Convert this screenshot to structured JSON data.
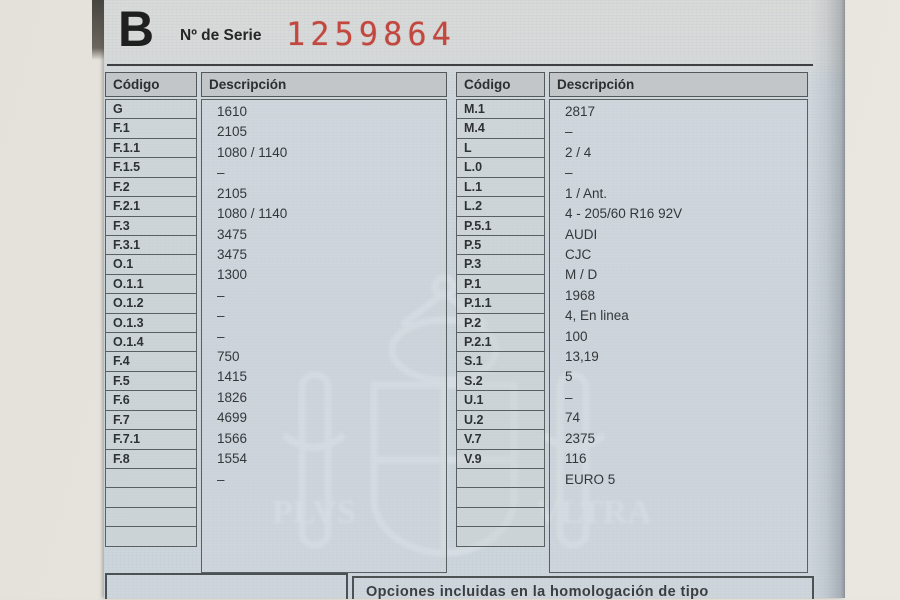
{
  "header": {
    "section_letter": "B",
    "serial_label": "Nº de Serie",
    "serial_number": "1259864"
  },
  "left_table": {
    "col_codigo": "Código",
    "col_descripcion": "Descripción",
    "rows": [
      {
        "code": "G",
        "desc": "1610"
      },
      {
        "code": "F.1",
        "desc": "2105"
      },
      {
        "code": "F.1.1",
        "desc": "1080 / 1140"
      },
      {
        "code": "F.1.5",
        "desc": "–"
      },
      {
        "code": "F.2",
        "desc": "2105"
      },
      {
        "code": "F.2.1",
        "desc": "1080 / 1140"
      },
      {
        "code": "F.3",
        "desc": "3475"
      },
      {
        "code": "F.3.1",
        "desc": "3475"
      },
      {
        "code": "O.1",
        "desc": "1300"
      },
      {
        "code": "O.1.1",
        "desc": "–"
      },
      {
        "code": "O.1.2",
        "desc": "–"
      },
      {
        "code": "O.1.3",
        "desc": "–"
      },
      {
        "code": "O.1.4",
        "desc": "750"
      },
      {
        "code": "F.4",
        "desc": "1415"
      },
      {
        "code": "F.5",
        "desc": "1826"
      },
      {
        "code": "F.6",
        "desc": "4699"
      },
      {
        "code": "F.7",
        "desc": "1566"
      },
      {
        "code": "F.7.1",
        "desc": "1554"
      },
      {
        "code": "F.8",
        "desc": "–"
      },
      {
        "code": "",
        "desc": ""
      },
      {
        "code": "",
        "desc": ""
      },
      {
        "code": "",
        "desc": ""
      },
      {
        "code": "",
        "desc": ""
      }
    ]
  },
  "right_table": {
    "col_codigo": "Código",
    "col_descripcion": "Descripción",
    "rows": [
      {
        "code": "M.1",
        "desc": "2817"
      },
      {
        "code": "M.4",
        "desc": "–"
      },
      {
        "code": "L",
        "desc": "2 / 4"
      },
      {
        "code": "L.0",
        "desc": "–"
      },
      {
        "code": "L.1",
        "desc": "1 / Ant."
      },
      {
        "code": "L.2",
        "desc": "4 - 205/60 R16 92V"
      },
      {
        "code": "P.5.1",
        "desc": "AUDI"
      },
      {
        "code": "P.5",
        "desc": "CJC"
      },
      {
        "code": "P.3",
        "desc": "M / D"
      },
      {
        "code": "P.1",
        "desc": "1968"
      },
      {
        "code": "P.1.1",
        "desc": "4, En linea"
      },
      {
        "code": "P.2",
        "desc": "100"
      },
      {
        "code": "P.2.1",
        "desc": "13,19"
      },
      {
        "code": "S.1",
        "desc": "5"
      },
      {
        "code": "S.2",
        "desc": "–"
      },
      {
        "code": "U.1",
        "desc": "74"
      },
      {
        "code": "U.2",
        "desc": "2375"
      },
      {
        "code": "V.7",
        "desc": "116"
      },
      {
        "code": "V.9",
        "desc": "EURO 5"
      },
      {
        "code": "",
        "desc": ""
      },
      {
        "code": "",
        "desc": ""
      },
      {
        "code": "",
        "desc": ""
      },
      {
        "code": "",
        "desc": ""
      }
    ]
  },
  "footer": {
    "options_title": "Opciones incluidas en la homologación de tipo"
  },
  "watermark_icon": "spanish-coat-of-arms-watermark",
  "colors": {
    "serial_red": "#c2473e",
    "paper_blue": "#ccd4d9",
    "photo_background": "#e6e3dd",
    "table_border": "#53585b",
    "header_cell_bg": "#c2c6c8",
    "ink": "#2e3234"
  }
}
